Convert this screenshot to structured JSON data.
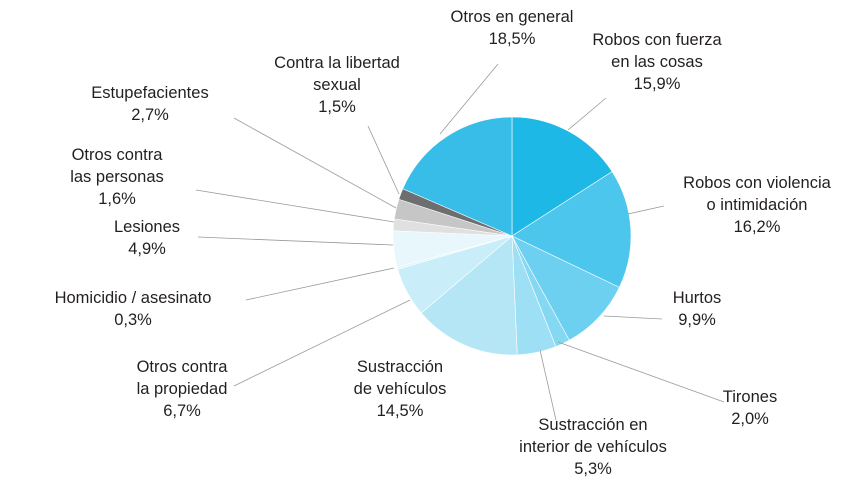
{
  "chart_data": {
    "type": "pie",
    "categories": [
      "Robos con fuerza\nen las cosas",
      "Robos con violencia\no intimidación",
      "Hurtos",
      "Tirones",
      "Sustracción en\ninterior de vehículos",
      "Sustracción\nde vehículos",
      "Otros contra\nla propiedad",
      "Homicidio / asesinato",
      "Lesiones",
      "Otros contra\nlas personas",
      "Estupefacientes",
      "Contra la libertad\nsexual",
      "Otros en general"
    ],
    "values": [
      15.9,
      16.2,
      9.9,
      2.0,
      5.3,
      14.5,
      6.7,
      0.3,
      4.9,
      1.6,
      2.7,
      1.5,
      18.5
    ],
    "value_labels": [
      "15,9%",
      "16,2%",
      "9,9%",
      "2,0%",
      "5,3%",
      "14,5%",
      "6,7%",
      "0,3%",
      "4,9%",
      "1,6%",
      "2,7%",
      "1,5%",
      "18,5%"
    ],
    "colors": [
      "#1eb8e6",
      "#4cc6ec",
      "#6dd0f0",
      "#85d8f2",
      "#9ddff4",
      "#b5e6f6",
      "#c9edf9",
      "#dff4fb",
      "#e8f7fc",
      "#e0e0e0",
      "#c6c6c6",
      "#6d6e70",
      "#38bde8"
    ]
  }
}
